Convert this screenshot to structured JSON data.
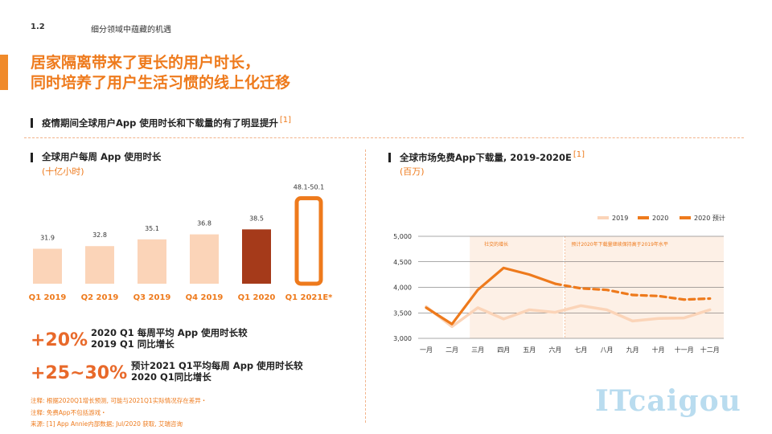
{
  "header": {
    "section_number": "1.2",
    "section_title": "细分领域中蕴藏的机遇",
    "headline_line1": "居家隔离带来了更长的用户时长，",
    "headline_line2": "同时培养了用户生活习惯的线上化迁移",
    "subhead": "疫情期间全球用户App 使用时长和下载量的有了明显提升",
    "subhead_ref": "[1]"
  },
  "left_chart": {
    "title": "全球用户每周 App 使用时长",
    "unit": "(十亿小时)"
  },
  "right_chart": {
    "title": "全球市场免费App下载量, 2019-2020E",
    "title_ref": "[1]",
    "unit": "(百万)",
    "legend": [
      "2019",
      "2020",
      "2020 预计"
    ],
    "annotation_left": "社交的增长",
    "annotation_right": "预计2020年下载量继续保持高于2019年水平"
  },
  "stats": [
    {
      "value": "+20%",
      "line1": "2020 Q1 每周平均 App 使用时长较",
      "line2": "2019 Q1 同比增长"
    },
    {
      "value": "+25~30%",
      "line1": "预计2021 Q1平均每周 App 使用时长较",
      "line2": "2020 Q1同比增长"
    }
  ],
  "notes": [
    "注释: 根据2020Q1增长预测, 可能与2021Q1实际情况存在差异・",
    "注释: 免费App不包括游戏・",
    "来源: [1] App Annie内部数据; Jul/2020 获取, 艾瑞咨询"
  ],
  "watermark": "ITcaigou",
  "chart_data": [
    {
      "type": "bar",
      "title": "全球用户每周 App 使用时长",
      "ylabel": "(十亿小时)",
      "categories": [
        "Q1 2019",
        "Q2 2019",
        "Q3 2019",
        "Q4 2019",
        "Q1 2020",
        "Q1 2021E*"
      ],
      "values": [
        31.9,
        32.8,
        35.1,
        36.8,
        38.5,
        49.1
      ],
      "value_labels": [
        "31.9",
        "32.8",
        "35.1",
        "36.8",
        "38.5",
        "48.1-50.1"
      ],
      "colors": [
        "#fbd4b8",
        "#fbd4b8",
        "#fbd4b8",
        "#fbd4b8",
        "#a53a1a",
        "outline:#ee7a1c"
      ],
      "ylim": [
        20,
        50.1
      ]
    },
    {
      "type": "line",
      "title": "全球市场免费App下载量, 2019-2020E",
      "ylabel": "(百万)",
      "categories": [
        "一月",
        "二月",
        "三月",
        "四月",
        "五月",
        "六月",
        "七月",
        "八月",
        "九月",
        "十月",
        "十一月",
        "十二月"
      ],
      "yticks": [
        "3,000",
        "3,500",
        "4,000",
        "4,500",
        "5,000"
      ],
      "ylim": [
        3000,
        5000
      ],
      "grid": true,
      "legend_position": "top-right",
      "series": [
        {
          "name": "2019",
          "color": "#fbd4b8",
          "style": "solid",
          "values": [
            3620,
            3230,
            3600,
            3380,
            3560,
            3510,
            3640,
            3560,
            3340,
            3390,
            3400,
            3560
          ]
        },
        {
          "name": "2020",
          "color": "#ee7a1c",
          "style": "solid",
          "values": [
            3600,
            3280,
            3950,
            4380,
            4250,
            4070,
            null,
            null,
            null,
            null,
            null,
            null
          ]
        },
        {
          "name": "2020 预计",
          "color": "#ee7a1c",
          "style": "dashed",
          "values": [
            null,
            null,
            null,
            null,
            null,
            4070,
            3980,
            3950,
            3850,
            3830,
            3760,
            3780
          ]
        }
      ]
    }
  ]
}
